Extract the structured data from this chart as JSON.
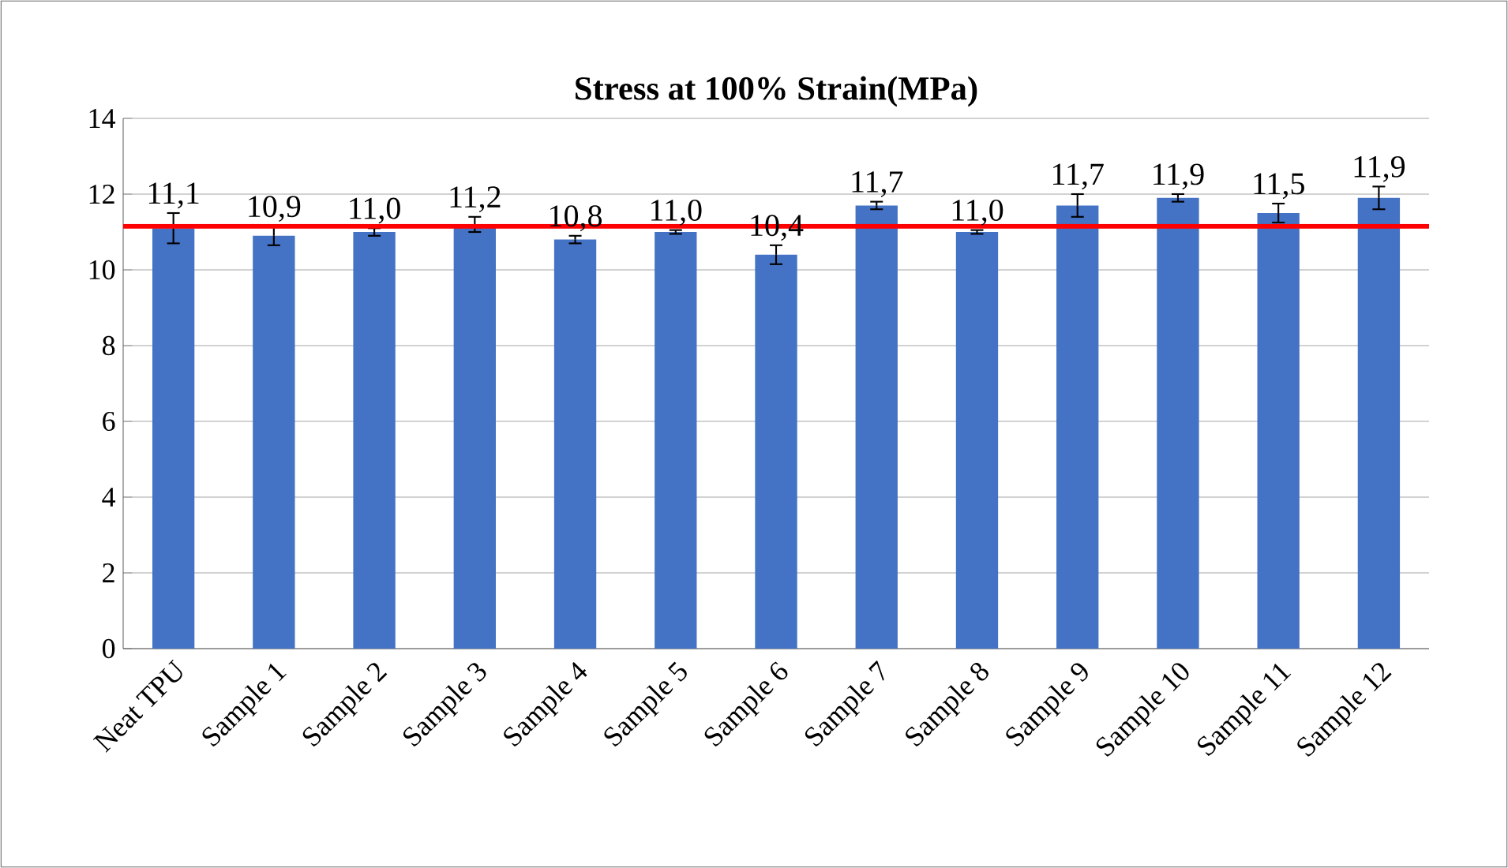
{
  "chart_data": {
    "type": "bar",
    "title": "Stress at 100% Strain(MPa)",
    "categories": [
      "Neat TPU",
      "Sample 1",
      "Sample 2",
      "Sample 3",
      "Sample 4",
      "Sample 5",
      "Sample 6",
      "Sample 7",
      "Sample 8",
      "Sample 9",
      "Sample 10",
      "Sample 11",
      "Sample 12"
    ],
    "values": [
      11.1,
      10.9,
      11.0,
      11.2,
      10.8,
      11.0,
      10.4,
      11.7,
      11.0,
      11.7,
      11.9,
      11.5,
      11.9
    ],
    "errors": [
      0.4,
      0.25,
      0.1,
      0.2,
      0.1,
      0.05,
      0.25,
      0.1,
      0.05,
      0.3,
      0.1,
      0.25,
      0.3
    ],
    "value_labels": [
      "11,1",
      "10,9",
      "11,0",
      "11,2",
      "10,8",
      "11,0",
      "10,4",
      "11,7",
      "11,0",
      "11,7",
      "11,9",
      "11,5",
      "11,9"
    ],
    "color": "#4472c4",
    "ylim": [
      0,
      14
    ],
    "yticks": [
      0,
      2,
      4,
      6,
      8,
      10,
      12,
      14
    ],
    "grid": "y",
    "ref_lines": [
      {
        "axis": "y",
        "value": 11.15,
        "color": "#ff0000"
      }
    ]
  }
}
